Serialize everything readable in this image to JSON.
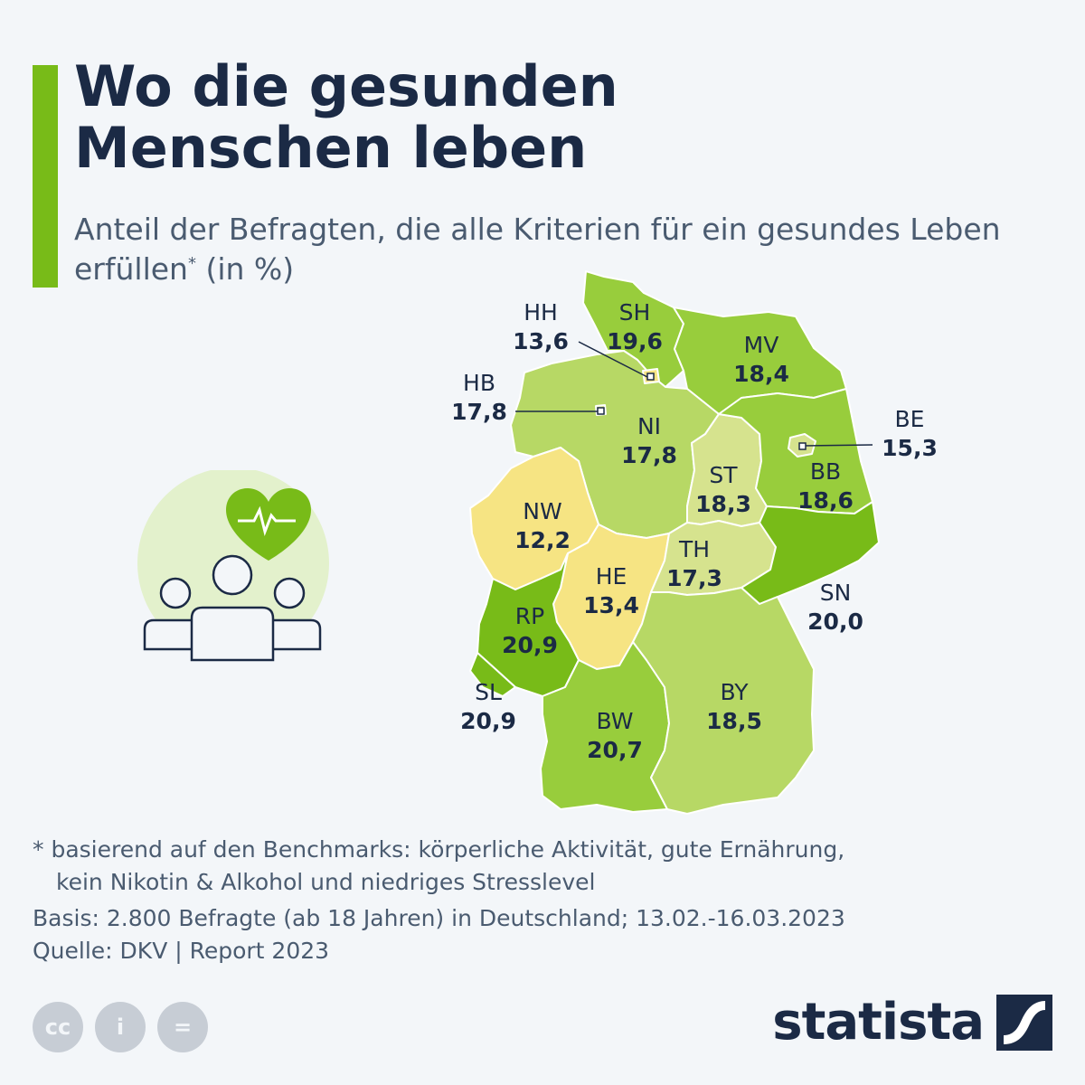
{
  "header": {
    "title_line1": "Wo die gesunden",
    "title_line2": "Menschen leben",
    "subtitle_main": "Anteil der Befragten, die alle Kriterien für ein gesundes Leben erfüllen",
    "subtitle_star": "*",
    "subtitle_unit": " (in %)"
  },
  "map_data": {
    "unit": "%",
    "regions": [
      {
        "code": "SH",
        "value": "19,6"
      },
      {
        "code": "HH",
        "value": "13,6"
      },
      {
        "code": "MV",
        "value": "18,4"
      },
      {
        "code": "HB",
        "value": "17,8"
      },
      {
        "code": "NI",
        "value": "17,8"
      },
      {
        "code": "BE",
        "value": "15,3"
      },
      {
        "code": "BB",
        "value": "18,6"
      },
      {
        "code": "ST",
        "value": "18,3"
      },
      {
        "code": "NW",
        "value": "12,2"
      },
      {
        "code": "TH",
        "value": "17,3"
      },
      {
        "code": "HE",
        "value": "13,4"
      },
      {
        "code": "SN",
        "value": "20,0"
      },
      {
        "code": "RP",
        "value": "20,9"
      },
      {
        "code": "SL",
        "value": "20,9"
      },
      {
        "code": "BY",
        "value": "18,5"
      },
      {
        "code": "BW",
        "value": "20,7"
      }
    ],
    "colors": {
      "darkest": "#78bb18",
      "dark": "#98cd3c",
      "medium": "#b7d865",
      "light": "#d6e38e",
      "yellow": "#f6e483",
      "lightest": "#fbe78a"
    }
  },
  "footer": {
    "footnote_line1": "* basierend auf den Benchmarks: körperliche Aktivität, gute Ernährung,",
    "footnote_line2": "kein Nikotin & Alkohol und niedriges Stresslevel",
    "basis": "Basis: 2.800 Befragte (ab 18 Jahren) in Deutschland; 13.02.-16.03.2023",
    "source": "Quelle: DKV | Report 2023",
    "license_icons": [
      "cc-icon",
      "attribution-icon",
      "no-derivatives-icon"
    ],
    "license_glyphs": [
      "cc",
      "i",
      "="
    ],
    "brand": "statista"
  }
}
